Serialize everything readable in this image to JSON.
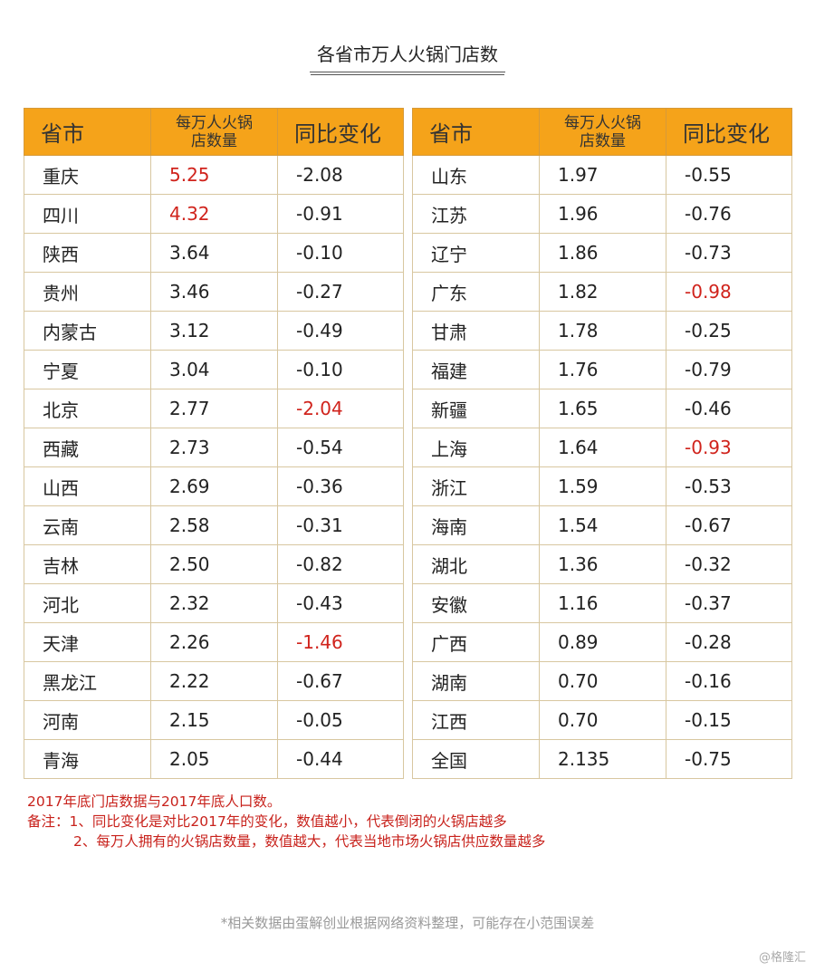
{
  "title": "各省市万人火锅门店数",
  "headers": {
    "col1": "省市",
    "col2_line1": "每万人火锅",
    "col2_line2": "店数量",
    "col3": "同比变化"
  },
  "highlight_color": "#d0231c",
  "header_color": "#f5a31a",
  "left_rows": [
    {
      "name": "重庆",
      "density": "5.25",
      "change": "-2.08",
      "red_density": true,
      "red_change": false
    },
    {
      "name": "四川",
      "density": "4.32",
      "change": "-0.91",
      "red_density": true,
      "red_change": false
    },
    {
      "name": "陕西",
      "density": "3.64",
      "change": "-0.10",
      "red_density": false,
      "red_change": false
    },
    {
      "name": "贵州",
      "density": "3.46",
      "change": "-0.27",
      "red_density": false,
      "red_change": false
    },
    {
      "name": "内蒙古",
      "density": "3.12",
      "change": "-0.49",
      "red_density": false,
      "red_change": false
    },
    {
      "name": "宁夏",
      "density": "3.04",
      "change": "-0.10",
      "red_density": false,
      "red_change": false
    },
    {
      "name": "北京",
      "density": "2.77",
      "change": "-2.04",
      "red_density": false,
      "red_change": true
    },
    {
      "name": "西藏",
      "density": "2.73",
      "change": "-0.54",
      "red_density": false,
      "red_change": false
    },
    {
      "name": "山西",
      "density": "2.69",
      "change": "-0.36",
      "red_density": false,
      "red_change": false
    },
    {
      "name": "云南",
      "density": "2.58",
      "change": "-0.31",
      "red_density": false,
      "red_change": false
    },
    {
      "name": "吉林",
      "density": "2.50",
      "change": "-0.82",
      "red_density": false,
      "red_change": false
    },
    {
      "name": "河北",
      "density": "2.32",
      "change": "-0.43",
      "red_density": false,
      "red_change": false
    },
    {
      "name": "天津",
      "density": "2.26",
      "change": "-1.46",
      "red_density": false,
      "red_change": true
    },
    {
      "name": "黑龙江",
      "density": "2.22",
      "change": "-0.67",
      "red_density": false,
      "red_change": false
    },
    {
      "name": "河南",
      "density": "2.15",
      "change": "-0.05",
      "red_density": false,
      "red_change": false
    },
    {
      "name": "青海",
      "density": "2.05",
      "change": "-0.44",
      "red_density": false,
      "red_change": false
    }
  ],
  "right_rows": [
    {
      "name": "山东",
      "density": "1.97",
      "change": "-0.55",
      "red_density": false,
      "red_change": false
    },
    {
      "name": "江苏",
      "density": "1.96",
      "change": "-0.76",
      "red_density": false,
      "red_change": false
    },
    {
      "name": "辽宁",
      "density": "1.86",
      "change": "-0.73",
      "red_density": false,
      "red_change": false
    },
    {
      "name": "广东",
      "density": "1.82",
      "change": "-0.98",
      "red_density": false,
      "red_change": true
    },
    {
      "name": "甘肃",
      "density": "1.78",
      "change": "-0.25",
      "red_density": false,
      "red_change": false
    },
    {
      "name": "福建",
      "density": "1.76",
      "change": "-0.79",
      "red_density": false,
      "red_change": false
    },
    {
      "name": "新疆",
      "density": "1.65",
      "change": "-0.46",
      "red_density": false,
      "red_change": false
    },
    {
      "name": "上海",
      "density": "1.64",
      "change": "-0.93",
      "red_density": false,
      "red_change": true
    },
    {
      "name": "浙江",
      "density": "1.59",
      "change": "-0.53",
      "red_density": false,
      "red_change": false
    },
    {
      "name": "海南",
      "density": "1.54",
      "change": "-0.67",
      "red_density": false,
      "red_change": false
    },
    {
      "name": "湖北",
      "density": "1.36",
      "change": "-0.32",
      "red_density": false,
      "red_change": false
    },
    {
      "name": "安徽",
      "density": "1.16",
      "change": "-0.37",
      "red_density": false,
      "red_change": false
    },
    {
      "name": "广西",
      "density": "0.89",
      "change": "-0.28",
      "red_density": false,
      "red_change": false
    },
    {
      "name": "湖南",
      "density": "0.70",
      "change": "-0.16",
      "red_density": false,
      "red_change": false
    },
    {
      "name": "江西",
      "density": "0.70",
      "change": "-0.15",
      "red_density": false,
      "red_change": false
    },
    {
      "name": "全国",
      "density": "2.135",
      "change": "-0.75",
      "red_density": false,
      "red_change": false
    }
  ],
  "notes": {
    "line1": "2017年底门店数据与2017年底人口数。",
    "line2": "备注：1、同比变化是对比2017年的变化，数值越小，代表倒闭的火锅店越多",
    "line3": "2、每万人拥有的火锅店数量，数值越大，代表当地市场火锅店供应数量越多"
  },
  "footer": "*相关数据由蛋解创业根据网络资料整理，可能存在小范围误差",
  "watermark": "@格隆汇"
}
